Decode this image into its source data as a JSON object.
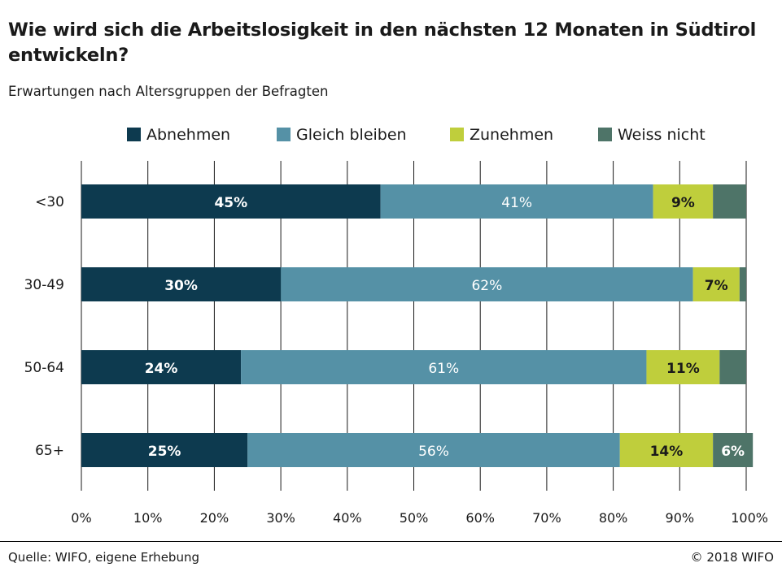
{
  "title": "Wie wird sich die Arbeitslosigkeit in den nächsten 12 Monaten in Südtirol entwickeln?",
  "subtitle": "Erwartungen nach Altersgruppen der Befragten",
  "source": "Quelle: WIFO, eigene Erhebung",
  "copyright": "© 2018 WIFO",
  "chart_data": {
    "type": "bar",
    "orientation": "horizontal",
    "stacked": true,
    "categories": [
      "<30",
      "30-49",
      "50-64",
      "65+"
    ],
    "series": [
      {
        "name": "Abnehmen",
        "color": "#0d3a4f",
        "values": [
          45,
          30,
          24,
          25
        ],
        "labels": [
          "45%",
          "30%",
          "24%",
          "25%"
        ],
        "label_color": "#ffffff",
        "label_bold": true
      },
      {
        "name": "Gleich bleiben",
        "color": "#5591a6",
        "values": [
          41,
          62,
          61,
          56
        ],
        "labels": [
          "41%",
          "62%",
          "61%",
          "56%"
        ],
        "label_color": "#ffffff",
        "label_bold": false
      },
      {
        "name": "Zunehmen",
        "color": "#bfce3c",
        "values": [
          9,
          7,
          11,
          14
        ],
        "labels": [
          "9%",
          "7%",
          "11%",
          "14%"
        ],
        "label_color": "#1a1a1a",
        "label_bold": true
      },
      {
        "name": "Weiss nicht",
        "color": "#4e7468",
        "values": [
          5,
          1,
          4,
          6
        ],
        "labels": [
          "",
          "",
          "",
          "6%"
        ],
        "label_color": "#ffffff",
        "label_bold": true
      }
    ],
    "xlim": [
      0,
      100
    ],
    "x_ticks": [
      "0%",
      "10%",
      "20%",
      "30%",
      "40%",
      "50%",
      "60%",
      "70%",
      "80%",
      "90%",
      "100%"
    ],
    "grid": "vertical",
    "legend_position": "top"
  }
}
